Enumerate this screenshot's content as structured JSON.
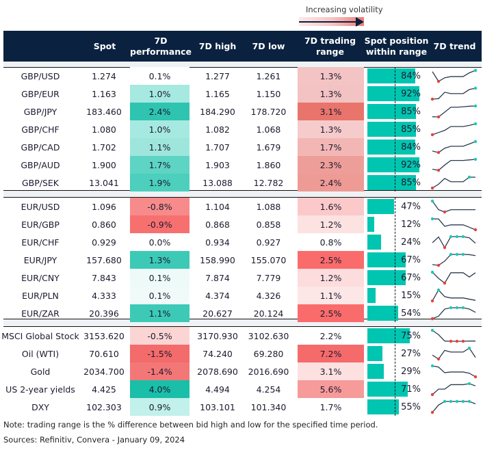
{
  "legend": {
    "label": "Increasing volatility"
  },
  "header": {
    "spot": "Spot",
    "perf": "7D performance",
    "high": "7D high",
    "low": "7D low",
    "range": "7D trading range",
    "position": "Spot position within range",
    "trend": "7D trend"
  },
  "colors": {
    "header_bg": "#0a2240",
    "bar": "#00c5b0",
    "max_marker": "#19c9b4",
    "min_marker": "#e8403a"
  },
  "chart_data": {
    "type": "table",
    "groups": [
      [
        {
          "name": "GBP/USD",
          "spot": "1.274",
          "perf": "0.1%",
          "perf_color": "#ffffff",
          "high": "1.277",
          "low": "1.261",
          "range": "1.3%",
          "range_color": "#f4c4c4",
          "pos": 84,
          "trend": [
            0.89,
            0,
            0.33,
            0.44,
            0.44,
            0.44,
            0.78,
            1
          ]
        },
        {
          "name": "GBP/EUR",
          "spot": "1.163",
          "perf": "1.0%",
          "perf_color": "#a6e9e0",
          "high": "1.165",
          "low": "1.150",
          "range": "1.3%",
          "range_color": "#f3c2c2",
          "pos": 92,
          "trend": [
            0,
            0.05,
            0.63,
            0.51,
            0.51,
            0.51,
            0.88,
            1
          ]
        },
        {
          "name": "GBP/JPY",
          "spot": "183.460",
          "perf": "2.4%",
          "perf_color": "#2ec4b0",
          "high": "184.290",
          "low": "178.720",
          "range": "3.1%",
          "range_color": "#e9746c",
          "pos": 85,
          "trend": [
            0.02,
            0,
            0.44,
            0.89,
            0.89,
            0.93,
            0.98,
            1
          ]
        },
        {
          "name": "GBP/CHF",
          "spot": "1.080",
          "perf": "1.0%",
          "perf_color": "#a6e9e0",
          "high": "1.082",
          "low": "1.068",
          "range": "1.3%",
          "range_color": "#f5cbcb",
          "pos": 85,
          "trend": [
            0,
            0.2,
            0.4,
            0.75,
            0.75,
            0.75,
            0.85,
            1
          ]
        },
        {
          "name": "GBP/CAD",
          "spot": "1.702",
          "perf": "1.1%",
          "perf_color": "#9ee6dc",
          "high": "1.707",
          "low": "1.679",
          "range": "1.7%",
          "range_color": "#f2b7b5",
          "pos": 84,
          "trend": [
            0.13,
            0,
            0.39,
            0.57,
            0.57,
            0.57,
            0.78,
            1
          ]
        },
        {
          "name": "GBP/AUD",
          "spot": "1.900",
          "perf": "1.7%",
          "perf_color": "#5dd4c4",
          "high": "1.903",
          "low": "1.860",
          "range": "2.3%",
          "range_color": "#ee9e99",
          "pos": 92,
          "trend": [
            0.1,
            0,
            0.48,
            0.9,
            0.9,
            0.9,
            0.95,
            1
          ]
        },
        {
          "name": "GBP/SEK",
          "spot": "13.041",
          "perf": "1.9%",
          "perf_color": "#4ccfbd",
          "high": "13.088",
          "low": "12.782",
          "range": "2.4%",
          "range_color": "#ee9a95",
          "pos": 85,
          "trend": [
            0,
            0.35,
            0.88,
            0.58,
            0.58,
            0.58,
            1,
            0.99
          ]
        }
      ],
      [
        {
          "name": "EUR/USD",
          "spot": "1.096",
          "perf": "-0.8%",
          "perf_color": "#f78b8b",
          "high": "1.104",
          "low": "1.088",
          "range": "1.6%",
          "range_color": "#fbc9c9",
          "pos": 47,
          "trend": [
            1,
            0.21,
            0,
            0.21,
            0.21,
            0.21,
            0.21,
            0.21
          ]
        },
        {
          "name": "EUR/GBP",
          "spot": "0.860",
          "perf": "-0.9%",
          "perf_color": "#f77070",
          "high": "0.868",
          "low": "0.858",
          "range": "1.2%",
          "range_color": "#fde2e2",
          "pos": 12,
          "trend": [
            1,
            0.99,
            0.32,
            0.45,
            0.45,
            0.45,
            0.23,
            0
          ]
        },
        {
          "name": "EUR/CHF",
          "spot": "0.929",
          "perf": "0.0%",
          "perf_color": "#ffffff",
          "high": "0.934",
          "low": "0.927",
          "range": "0.8%",
          "range_color": "#ffffff",
          "pos": 24,
          "trend": [
            0.44,
            0.97,
            0,
            1,
            1,
            1,
            0.89,
            0.4
          ]
        },
        {
          "name": "EUR/JPY",
          "spot": "157.680",
          "perf": "1.3%",
          "perf_color": "#3ccab6",
          "high": "158.990",
          "low": "155.070",
          "range": "2.5%",
          "range_color": "#fa6b6b",
          "pos": 67,
          "trend": [
            0.07,
            0,
            0.39,
            1,
            1,
            1,
            0.98,
            0.89
          ]
        },
        {
          "name": "EUR/CNY",
          "spot": "7.843",
          "perf": "0.1%",
          "perf_color": "#eefaf8",
          "high": "7.874",
          "low": "7.779",
          "range": "1.2%",
          "range_color": "#fcdcdc",
          "pos": 67,
          "trend": [
            1,
            0.44,
            0,
            0.95,
            0.95,
            0.95,
            0.56,
            0.95
          ]
        },
        {
          "name": "EUR/PLN",
          "spot": "4.333",
          "perf": "0.1%",
          "perf_color": "#f0faf9",
          "high": "4.374",
          "low": "4.326",
          "range": "1.1%",
          "range_color": "#fde6e6",
          "pos": 15,
          "trend": [
            0,
            1,
            0.39,
            0.27,
            0.27,
            0.27,
            0.16,
            0.05
          ]
        },
        {
          "name": "EUR/ZAR",
          "spot": "20.396",
          "perf": "1.1%",
          "perf_color": "#3ccab6",
          "high": "20.627",
          "low": "20.124",
          "range": "2.5%",
          "range_color": "#fa6b6b",
          "pos": 54,
          "trend": [
            0,
            0.23,
            0.88,
            1,
            1,
            1,
            0.88,
            0.58
          ]
        }
      ],
      [
        {
          "name": "MSCI Global Stock",
          "spot": "3153.620",
          "perf": "-0.5%",
          "perf_color": "#fbd4d4",
          "high": "3170.930",
          "low": "3102.630",
          "range": "2.2%",
          "range_color": "#ffffff",
          "pos": 75,
          "trend": [
            1,
            0.6,
            0.02,
            0,
            0,
            0,
            0.02,
            0.02
          ]
        },
        {
          "name": "Oil (WTI)",
          "spot": "70.610",
          "perf": "-1.5%",
          "perf_color": "#f36b6b",
          "high": "74.240",
          "low": "69.280",
          "range": "7.2%",
          "range_color": "#f56a6a",
          "pos": 27,
          "trend": [
            0.36,
            0,
            0.79,
            0.64,
            0.64,
            0.64,
            1,
            0.15
          ]
        },
        {
          "name": "Gold",
          "spot": "2034.700",
          "perf": "-1.4%",
          "perf_color": "#f47777",
          "high": "2078.690",
          "low": "2016.690",
          "range": "3.1%",
          "range_color": "#fde0e0",
          "pos": 29,
          "trend": [
            1,
            0.89,
            0.38,
            0.44,
            0.44,
            0.44,
            0.33,
            0
          ]
        },
        {
          "name": "US 2-year yields",
          "spot": "4.425",
          "perf": "4.0%",
          "perf_color": "#19bfa8",
          "high": "4.494",
          "low": "4.254",
          "range": "5.6%",
          "range_color": "#f79a9a",
          "pos": 71,
          "trend": [
            0,
            0.5,
            0.5,
            0.91,
            0.91,
            0.91,
            1,
            0.8
          ]
        },
        {
          "name": "DXY",
          "spot": "102.303",
          "perf": "0.9%",
          "perf_color": "#c2f0ea",
          "high": "103.101",
          "low": "101.340",
          "range": "1.7%",
          "range_color": "#ffffff",
          "pos": 55,
          "trend": [
            0,
            0.67,
            1,
            1,
            1,
            1,
            1,
            0.78
          ]
        }
      ]
    ]
  },
  "notes": {
    "note": "Note: trading range is the % difference between bid high and low for the specified time period.",
    "sources": "Sources: Refinitiv, Convera - January 09, 2024"
  }
}
